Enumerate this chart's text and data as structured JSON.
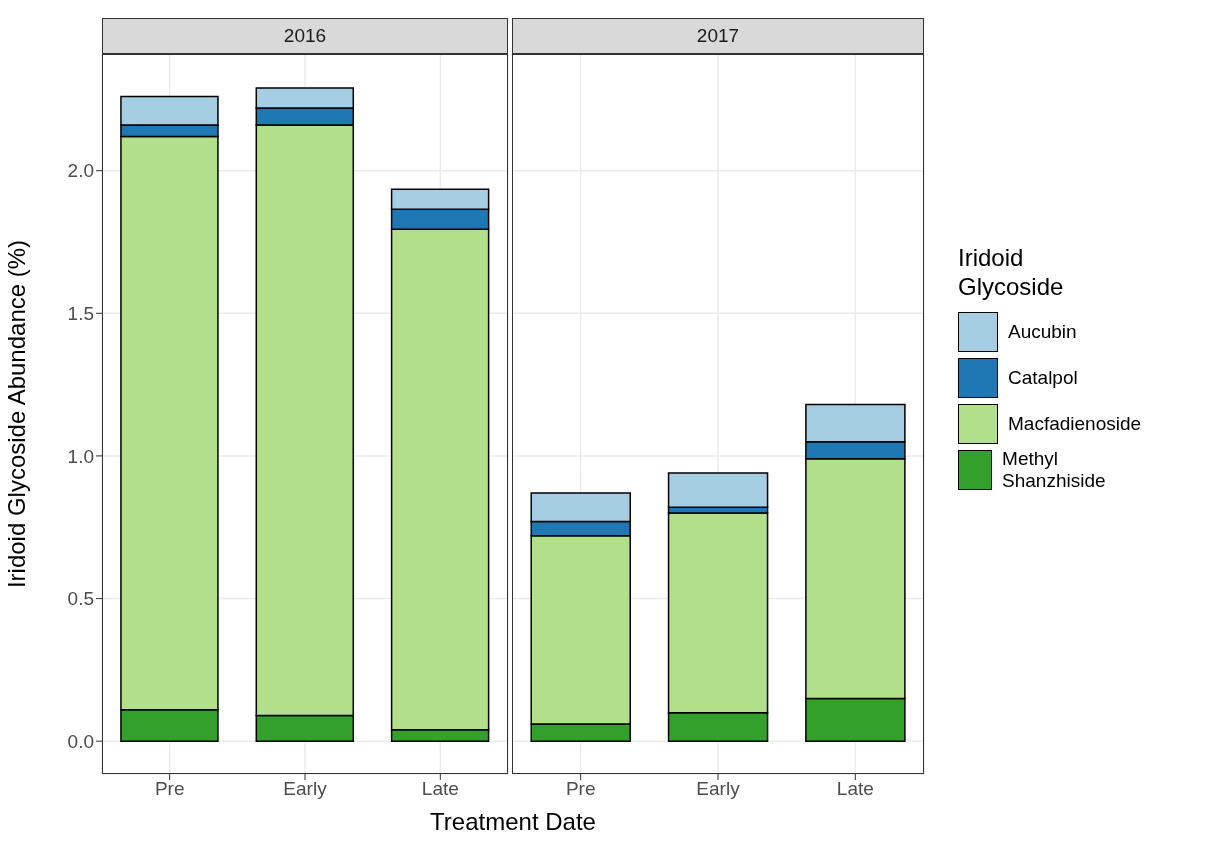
{
  "chart_data": [
    {
      "type": "bar",
      "title": "2016",
      "xlabel": "Treatment Date",
      "ylabel": "Iridoid Glycoside Abundance (%)",
      "categories": [
        "Pre",
        "Early",
        "Late"
      ],
      "stacked": true,
      "grid": true,
      "legend": "right",
      "legend_title": "Iridoid\nGlycoside",
      "ylim": [
        -0.115,
        2.409
      ],
      "yticks": [
        {
          "value": 0,
          "label": "0.0"
        },
        {
          "value": 0.5,
          "label": "0.5"
        },
        {
          "value": 1,
          "label": "1.0"
        },
        {
          "value": 1.5,
          "label": "1.5"
        },
        {
          "value": 2,
          "label": "2.0"
        }
      ],
      "series": [
        {
          "name": "Methyl Shanzhiside",
          "color": "#33a02c",
          "values": [
            0.11,
            0.09,
            0.04
          ]
        },
        {
          "name": "Macfadienoside",
          "color": "#b2df8a",
          "values": [
            2.01,
            2.07,
            1.755
          ]
        },
        {
          "name": "Catalpol",
          "color": "#1f78b4",
          "values": [
            0.04,
            0.06,
            0.07
          ]
        },
        {
          "name": "Aucubin",
          "color": "#a6cee3",
          "values": [
            0.1,
            0.07,
            0.07
          ]
        }
      ]
    },
    {
      "type": "bar",
      "title": "2017",
      "categories": [
        "Pre",
        "Early",
        "Late"
      ],
      "stacked": true,
      "grid": true,
      "tick_labels": "x",
      "ylim": [
        -0.115,
        2.409
      ],
      "yticks": [
        0,
        0.5,
        1,
        1.5,
        2
      ],
      "series": [
        {
          "color": "#33a02c",
          "values": [
            0.06,
            0.1,
            0.15
          ]
        },
        {
          "color": "#b2df8a",
          "values": [
            0.66,
            0.7,
            0.84
          ]
        },
        {
          "color": "#1f78b4",
          "values": [
            0.05,
            0.02,
            0.06
          ]
        },
        {
          "color": "#a6cee3",
          "values": [
            0.1,
            0.12,
            0.13
          ]
        }
      ]
    }
  ]
}
